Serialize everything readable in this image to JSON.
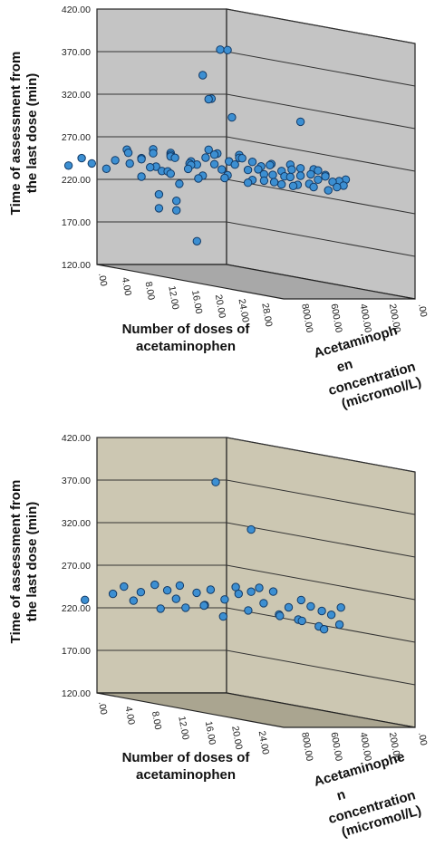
{
  "chart_data": [
    {
      "type": "scatter",
      "title": "",
      "ylabel": [
        "Time of assessment from",
        "the last dose (min)"
      ],
      "xlabel": [
        "Number of doses of",
        "acetaminophen"
      ],
      "zlabel": [
        "Acetaminoph",
        "en",
        "concentration",
        "(micromol/L)"
      ],
      "y_ticks": [
        "120.00",
        "170.00",
        "220.00",
        "270.00",
        "320.00",
        "370.00",
        "420.00"
      ],
      "x_ticks": [
        ".00",
        "4.00",
        "8.00",
        "12.00",
        "16.00",
        "20.00",
        "24.00",
        "28.00"
      ],
      "z_ticks": [
        ".00",
        "200.00",
        "400.00",
        "600.00",
        "800.00"
      ],
      "xlim": [
        0,
        32
      ],
      "ylim": [
        120,
        420
      ],
      "zlim": [
        0,
        900
      ],
      "colors": {
        "wall": "#c4c4c4",
        "floor": "#a8a8a8",
        "marker": "#3c8fd2",
        "marker_edge": "#123a66"
      },
      "points": [
        {
          "x": 14,
          "y": 390,
          "z": 300
        },
        {
          "x": 16,
          "y": 392,
          "z": 330
        },
        {
          "x": 10,
          "y": 355,
          "z": 260
        },
        {
          "x": 11,
          "y": 328,
          "z": 260
        },
        {
          "x": 12,
          "y": 330,
          "z": 280
        },
        {
          "x": 16,
          "y": 313,
          "z": 300
        },
        {
          "x": 24,
          "y": 318,
          "z": 150
        },
        {
          "x": 3,
          "y": 240,
          "z": 900
        },
        {
          "x": 4,
          "y": 250,
          "z": 850
        },
        {
          "x": 5,
          "y": 245,
          "z": 820
        },
        {
          "x": 6,
          "y": 250,
          "z": 700
        },
        {
          "x": 7,
          "y": 260,
          "z": 650
        },
        {
          "x": 8,
          "y": 255,
          "z": 600
        },
        {
          "x": 8,
          "y": 245,
          "z": 500
        },
        {
          "x": 9,
          "y": 262,
          "z": 560
        },
        {
          "x": 10,
          "y": 258,
          "z": 450
        },
        {
          "x": 10,
          "y": 250,
          "z": 300
        },
        {
          "x": 11,
          "y": 265,
          "z": 520
        },
        {
          "x": 11,
          "y": 255,
          "z": 380
        },
        {
          "x": 12,
          "y": 252,
          "z": 420
        },
        {
          "x": 12,
          "y": 270,
          "z": 300
        },
        {
          "x": 13,
          "y": 262,
          "z": 360
        },
        {
          "x": 13,
          "y": 248,
          "z": 250
        },
        {
          "x": 14,
          "y": 268,
          "z": 320
        },
        {
          "x": 14,
          "y": 255,
          "z": 200
        },
        {
          "x": 15,
          "y": 260,
          "z": 280
        },
        {
          "x": 15,
          "y": 250,
          "z": 150
        },
        {
          "x": 16,
          "y": 265,
          "z": 230
        },
        {
          "x": 16,
          "y": 252,
          "z": 120
        },
        {
          "x": 17,
          "y": 262,
          "z": 200
        },
        {
          "x": 18,
          "y": 258,
          "z": 180
        },
        {
          "x": 18,
          "y": 248,
          "z": 100
        },
        {
          "x": 19,
          "y": 262,
          "z": 150
        },
        {
          "x": 20,
          "y": 255,
          "z": 120
        },
        {
          "x": 20,
          "y": 248,
          "z": 60
        },
        {
          "x": 21,
          "y": 258,
          "z": 90
        },
        {
          "x": 22,
          "y": 252,
          "z": 70
        },
        {
          "x": 23,
          "y": 255,
          "z": 40
        },
        {
          "x": 24,
          "y": 250,
          "z": 30
        },
        {
          "x": 25,
          "y": 255,
          "z": 20
        },
        {
          "x": 26,
          "y": 250,
          "z": 10
        },
        {
          "x": 27,
          "y": 252,
          "z": 5
        },
        {
          "x": 28,
          "y": 255,
          "z": 0
        },
        {
          "x": 24,
          "y": 262,
          "z": 60
        },
        {
          "x": 22,
          "y": 265,
          "z": 140
        },
        {
          "x": 20,
          "y": 262,
          "z": 200
        },
        {
          "x": 26,
          "y": 258,
          "z": 60
        },
        {
          "x": 27,
          "y": 245,
          "z": 20
        },
        {
          "x": 28,
          "y": 248,
          "z": 15
        },
        {
          "x": 7,
          "y": 232,
          "z": 560
        },
        {
          "x": 9,
          "y": 238,
          "z": 440
        },
        {
          "x": 11,
          "y": 235,
          "z": 330
        },
        {
          "x": 13,
          "y": 238,
          "z": 230
        },
        {
          "x": 15,
          "y": 235,
          "z": 150
        },
        {
          "x": 17,
          "y": 240,
          "z": 120
        },
        {
          "x": 19,
          "y": 238,
          "z": 80
        },
        {
          "x": 21,
          "y": 240,
          "z": 50
        },
        {
          "x": 23,
          "y": 240,
          "z": 20
        },
        {
          "x": 12,
          "y": 230,
          "z": 500
        },
        {
          "x": 10,
          "y": 215,
          "z": 560
        },
        {
          "x": 12,
          "y": 210,
          "z": 520
        },
        {
          "x": 11,
          "y": 200,
          "z": 600
        },
        {
          "x": 13,
          "y": 200,
          "z": 560
        },
        {
          "x": 14,
          "y": 165,
          "z": 460
        },
        {
          "x": 9,
          "y": 255,
          "z": 640
        },
        {
          "x": 10,
          "y": 268,
          "z": 600
        },
        {
          "x": 8,
          "y": 265,
          "z": 700
        },
        {
          "x": 6,
          "y": 240,
          "z": 760
        },
        {
          "x": 14,
          "y": 242,
          "z": 420
        },
        {
          "x": 16,
          "y": 245,
          "z": 330
        },
        {
          "x": 18,
          "y": 242,
          "z": 240
        },
        {
          "x": 13,
          "y": 255,
          "z": 470
        },
        {
          "x": 15,
          "y": 268,
          "z": 380
        },
        {
          "x": 17,
          "y": 270,
          "z": 290
        },
        {
          "x": 12,
          "y": 262,
          "z": 560
        },
        {
          "x": 10,
          "y": 242,
          "z": 500
        },
        {
          "x": 19,
          "y": 250,
          "z": 200
        },
        {
          "x": 21,
          "y": 250,
          "z": 140
        },
        {
          "x": 23,
          "y": 262,
          "z": 110
        },
        {
          "x": 25,
          "y": 262,
          "z": 70
        },
        {
          "x": 26,
          "y": 240,
          "z": 40
        },
        {
          "x": 22,
          "y": 240,
          "z": 120
        },
        {
          "x": 20,
          "y": 242,
          "z": 170
        },
        {
          "x": 24,
          "y": 245,
          "z": 90
        },
        {
          "x": 18,
          "y": 268,
          "z": 330
        },
        {
          "x": 16,
          "y": 258,
          "z": 420
        },
        {
          "x": 14,
          "y": 250,
          "z": 520
        },
        {
          "x": 12,
          "y": 245,
          "z": 620
        },
        {
          "x": 9,
          "y": 250,
          "z": 720
        },
        {
          "x": 11,
          "y": 248,
          "z": 660
        },
        {
          "x": 13,
          "y": 265,
          "z": 600
        }
      ]
    },
    {
      "type": "scatter",
      "title": "",
      "ylabel": [
        "Time of assessment from",
        "the last dose (min)"
      ],
      "xlabel": [
        "Number of doses of",
        "acetaminophen"
      ],
      "zlabel": [
        "Acetaminophe",
        "n",
        "concentration",
        "(micromol/L)"
      ],
      "y_ticks": [
        "120.00",
        "170.00",
        "220.00",
        "270.00",
        "320.00",
        "370.00",
        "420.00"
      ],
      "x_ticks": [
        ".00",
        "4.00",
        "8.00",
        "12.00",
        "16.00",
        "20.00",
        "24.00"
      ],
      "z_ticks": [
        ".00",
        "200.00",
        "400.00",
        "600.00",
        "800.00"
      ],
      "xlim": [
        0,
        28
      ],
      "ylim": [
        120,
        420
      ],
      "zlim": [
        0,
        900
      ],
      "colors": {
        "wall": "#ccc7b2",
        "floor": "#aaa590",
        "marker": "#3c8fd2",
        "marker_edge": "#123a66"
      },
      "points": [
        {
          "x": 12,
          "y": 385,
          "z": 320
        },
        {
          "x": 16,
          "y": 335,
          "z": 260
        },
        {
          "x": 4,
          "y": 235,
          "z": 850
        },
        {
          "x": 6,
          "y": 245,
          "z": 750
        },
        {
          "x": 7,
          "y": 255,
          "z": 720
        },
        {
          "x": 8,
          "y": 250,
          "z": 650
        },
        {
          "x": 8,
          "y": 240,
          "z": 700
        },
        {
          "x": 9,
          "y": 260,
          "z": 600
        },
        {
          "x": 10,
          "y": 255,
          "z": 560
        },
        {
          "x": 10,
          "y": 245,
          "z": 500
        },
        {
          "x": 11,
          "y": 262,
          "z": 520
        },
        {
          "x": 12,
          "y": 255,
          "z": 450
        },
        {
          "x": 12,
          "y": 240,
          "z": 400
        },
        {
          "x": 13,
          "y": 260,
          "z": 400
        },
        {
          "x": 14,
          "y": 250,
          "z": 350
        },
        {
          "x": 14,
          "y": 230,
          "z": 360
        },
        {
          "x": 15,
          "y": 258,
          "z": 300
        },
        {
          "x": 16,
          "y": 262,
          "z": 260
        },
        {
          "x": 16,
          "y": 240,
          "z": 280
        },
        {
          "x": 17,
          "y": 250,
          "z": 220
        },
        {
          "x": 18,
          "y": 265,
          "z": 200
        },
        {
          "x": 18,
          "y": 238,
          "z": 160
        },
        {
          "x": 19,
          "y": 248,
          "z": 140
        },
        {
          "x": 20,
          "y": 258,
          "z": 100
        },
        {
          "x": 20,
          "y": 235,
          "z": 120
        },
        {
          "x": 21,
          "y": 252,
          "z": 80
        },
        {
          "x": 22,
          "y": 248,
          "z": 50
        },
        {
          "x": 22,
          "y": 230,
          "z": 70
        },
        {
          "x": 23,
          "y": 245,
          "z": 30
        },
        {
          "x": 24,
          "y": 255,
          "z": 10
        },
        {
          "x": 24,
          "y": 235,
          "z": 20
        },
        {
          "x": 9,
          "y": 232,
          "z": 560
        },
        {
          "x": 11,
          "y": 236,
          "z": 480
        },
        {
          "x": 13,
          "y": 242,
          "z": 440
        },
        {
          "x": 15,
          "y": 266,
          "z": 320
        },
        {
          "x": 17,
          "y": 268,
          "z": 250
        },
        {
          "x": 19,
          "y": 238,
          "z": 200
        },
        {
          "x": 21,
          "y": 235,
          "z": 140
        },
        {
          "x": 23,
          "y": 228,
          "z": 80
        }
      ]
    }
  ]
}
